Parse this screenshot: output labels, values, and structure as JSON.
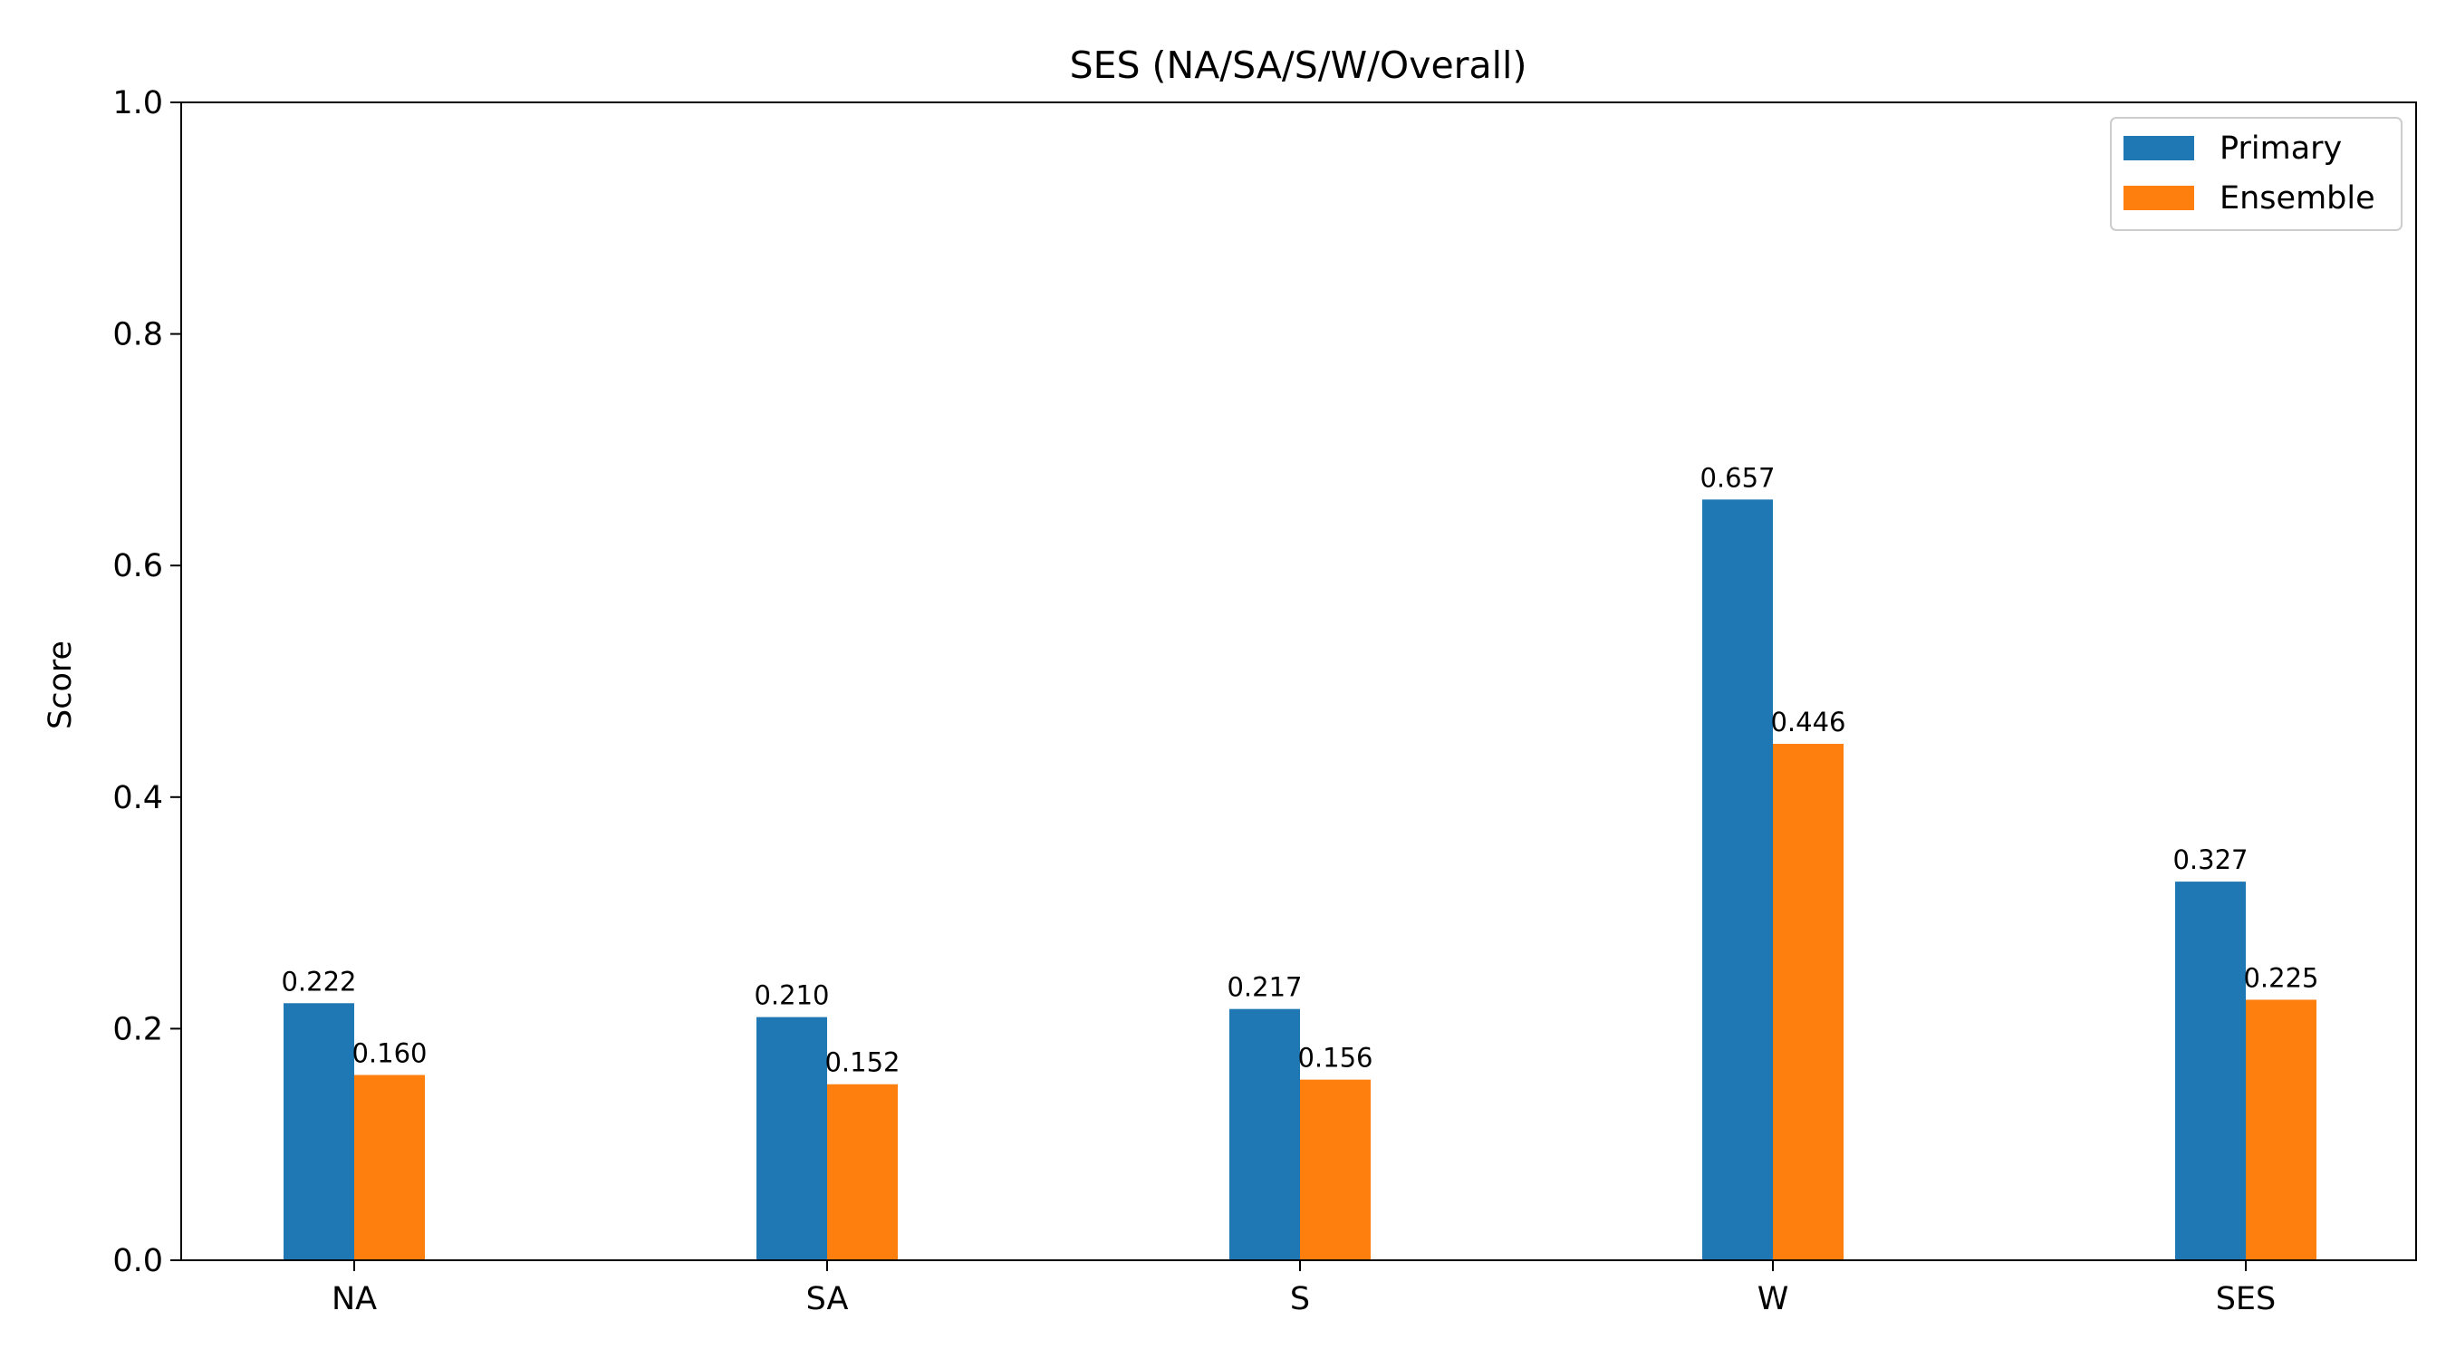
{
  "chart_data": {
    "type": "bar",
    "title": "SES (NA/SA/S/W/Overall)",
    "xlabel": "",
    "ylabel": "Score",
    "categories": [
      "NA",
      "SA",
      "S",
      "W",
      "SES"
    ],
    "series": [
      {
        "name": "Primary",
        "color": "#1f77b4",
        "values": [
          0.222,
          0.21,
          0.217,
          0.657,
          0.327
        ],
        "labels": [
          "0.222",
          "0.210",
          "0.217",
          "0.657",
          "0.327"
        ]
      },
      {
        "name": "Ensemble",
        "color": "#ff7f0e",
        "values": [
          0.16,
          0.152,
          0.156,
          0.446,
          0.225
        ],
        "labels": [
          "0.160",
          "0.152",
          "0.156",
          "0.446",
          "0.225"
        ]
      }
    ],
    "ylim": [
      0,
      1.0
    ],
    "yticks": [
      0.0,
      0.2,
      0.4,
      0.6,
      0.8,
      1.0
    ],
    "ytick_labels": [
      "0.0",
      "0.2",
      "0.4",
      "0.6",
      "0.8",
      "1.0"
    ],
    "grid": false,
    "legend_position": "top-right"
  }
}
